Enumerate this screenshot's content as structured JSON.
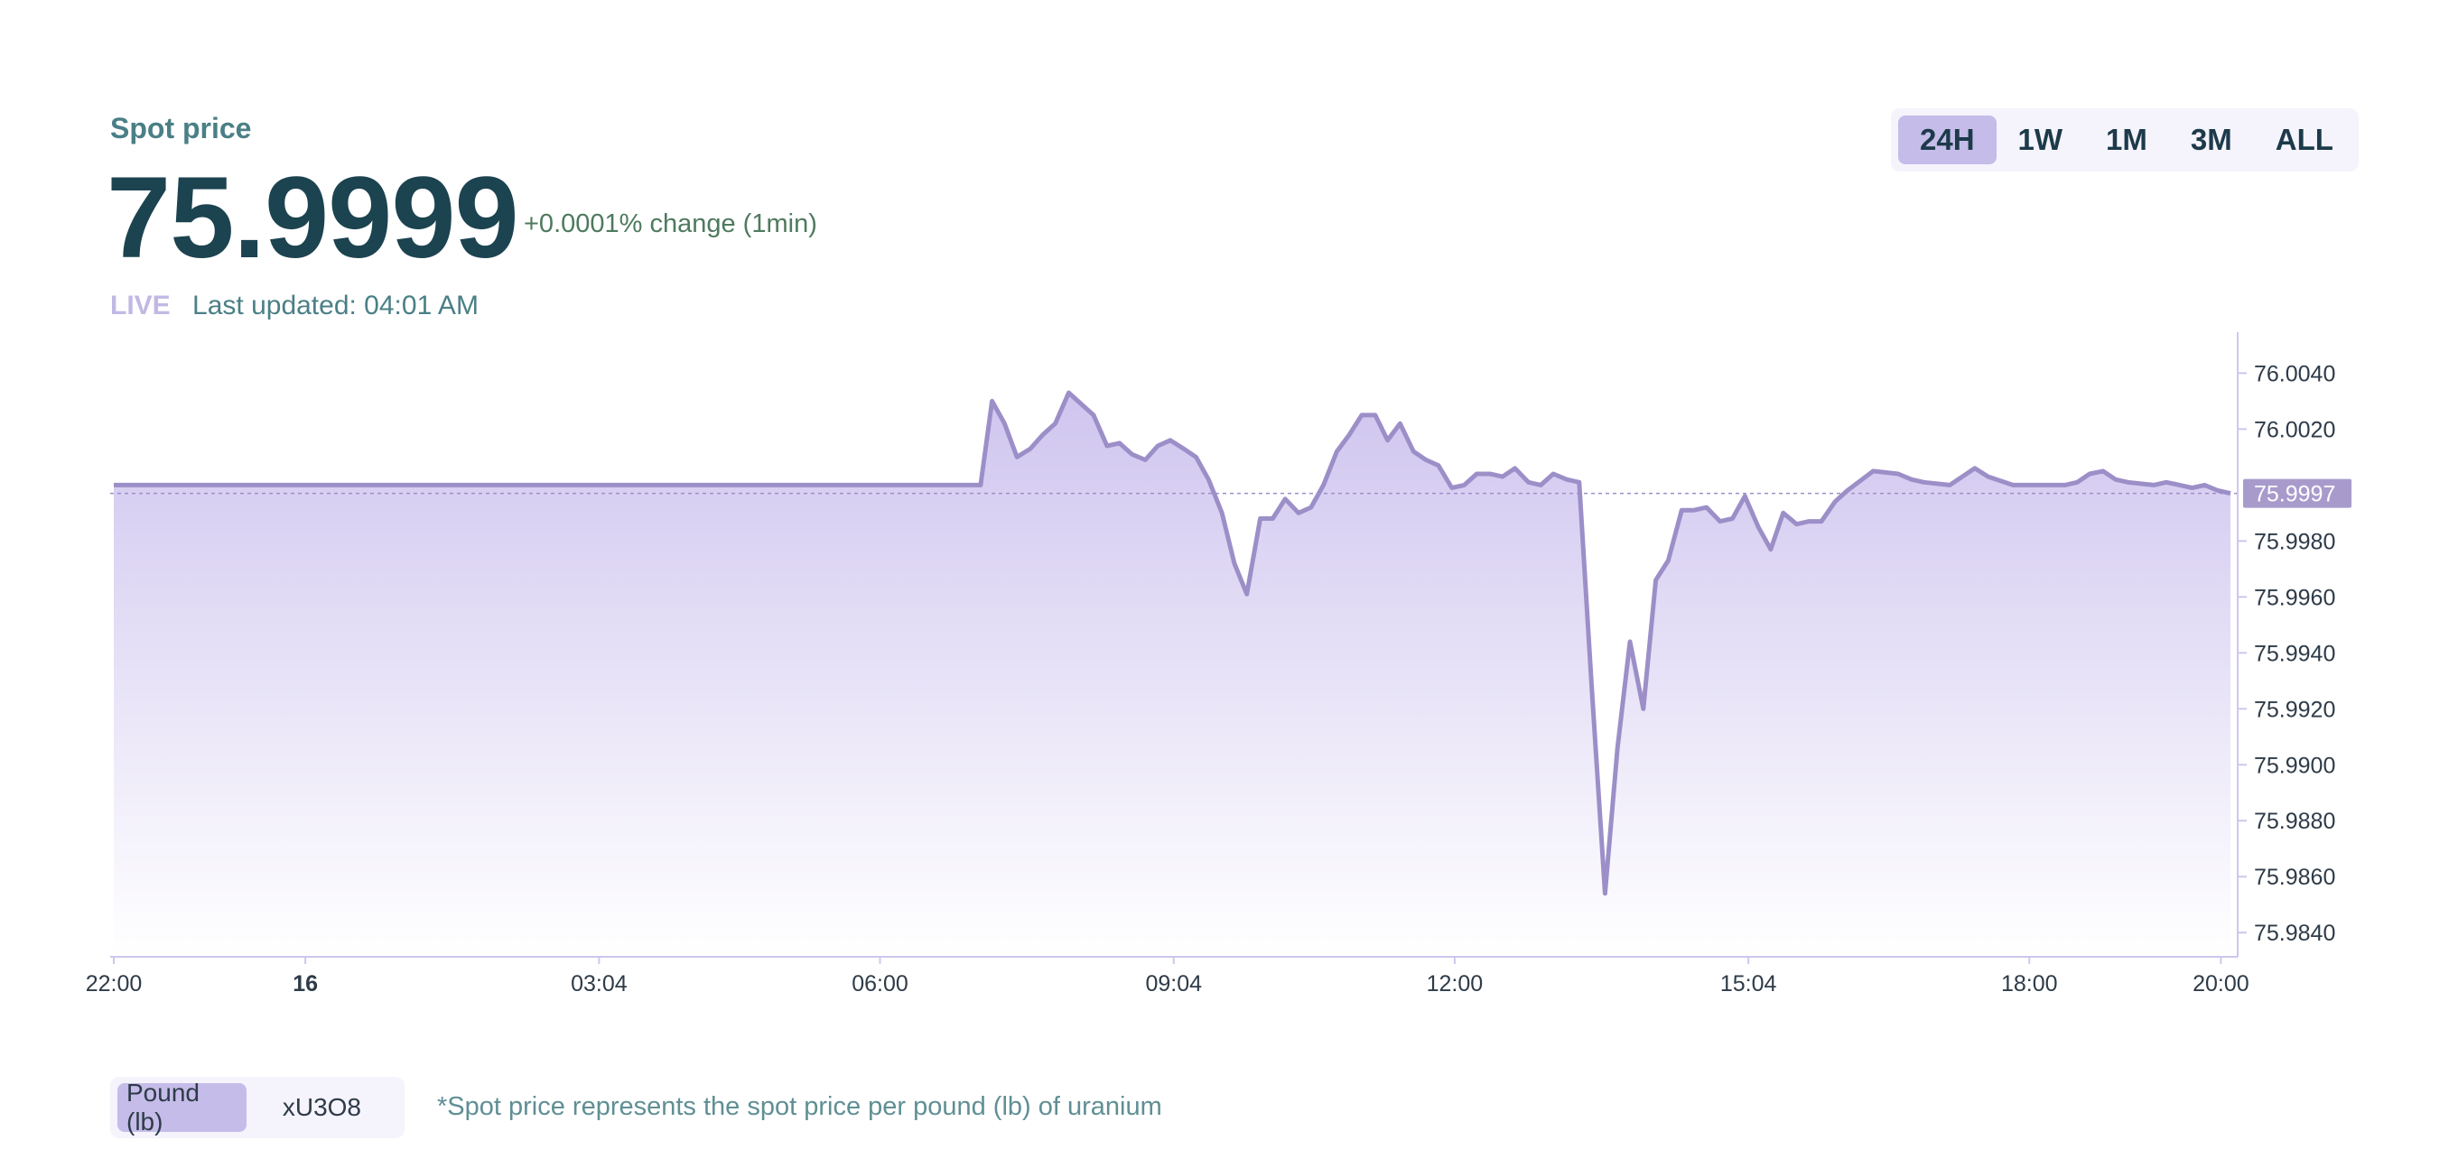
{
  "header": {
    "label": "Spot price",
    "price": "75.9999",
    "change": "+0.0001% change (1min)",
    "live": "LIVE",
    "updated": "Last updated: 04:01 AM"
  },
  "range_tabs": [
    "24H",
    "1W",
    "1M",
    "3M",
    "ALL"
  ],
  "range_selected": "24H",
  "units": {
    "options": [
      "Pound (lb)",
      "xU3O8"
    ],
    "selected": "Pound (lb)"
  },
  "footnote": "*Spot price represents the spot price per pound (lb) of uranium",
  "colors": {
    "line": "#9c8fc8",
    "fill_top": "#cfc5ef",
    "fill_bottom": "#ffffff",
    "accent": "#c5bce9",
    "current_badge": "#a89bcc",
    "axis": "#cfc6ec",
    "tick_text": "#2e3b48"
  },
  "chart_data": {
    "type": "area",
    "title": "",
    "xlabel": "",
    "ylabel": "",
    "x_ticks": [
      "22:00",
      "16",
      "03:04",
      "06:00",
      "09:04",
      "12:00",
      "15:04",
      "18:00",
      "20:00"
    ],
    "x_ticks_bold": [
      "16"
    ],
    "y_ticks": [
      "76.0040",
      "76.0020",
      "75.9980",
      "75.9960",
      "75.9940",
      "75.9920",
      "75.9900",
      "75.9880",
      "75.9860",
      "75.9840"
    ],
    "ylim": [
      75.9832,
      76.0054
    ],
    "current_value": "75.9997",
    "x_domain_hours": [
      -2.0,
      20.1
    ],
    "series": [
      {
        "x": [
          -2.0,
          7.05,
          7.17,
          7.3,
          7.43,
          7.57,
          7.7,
          7.83,
          7.97,
          8.1,
          8.23,
          8.37,
          8.5,
          8.63,
          8.77,
          8.9,
          9.03,
          9.17,
          9.3,
          9.43,
          9.57,
          9.7,
          9.83,
          9.97,
          10.1,
          10.23,
          10.37,
          10.5,
          10.63,
          10.77,
          10.9,
          11.03,
          11.17,
          11.3,
          11.43,
          11.57,
          11.7,
          11.83,
          11.97,
          12.1,
          12.23,
          12.37,
          12.5,
          12.63,
          12.77,
          12.9,
          13.03,
          13.17,
          13.3,
          13.43,
          13.57,
          13.7,
          13.83,
          13.97,
          14.1,
          14.23,
          14.37,
          14.5,
          14.63,
          14.77,
          14.9,
          15.03,
          15.17,
          15.3,
          15.43,
          15.57,
          15.7,
          15.83,
          15.97,
          16.1,
          16.37,
          16.63,
          16.77,
          16.9,
          17.17,
          17.43,
          17.57,
          17.83,
          17.97,
          18.1,
          18.37,
          18.5,
          18.63,
          18.77,
          18.9,
          19.03,
          19.3,
          19.43,
          19.57,
          19.7,
          19.83,
          19.97,
          20.1
        ],
        "y": [
          76.0,
          76.0,
          76.003,
          76.0022,
          76.001,
          76.0013,
          76.0018,
          76.0022,
          76.0033,
          76.0029,
          76.0025,
          76.0014,
          76.0015,
          76.0011,
          76.0009,
          76.0014,
          76.0016,
          76.0013,
          76.001,
          76.0002,
          75.999,
          75.9972,
          75.9961,
          75.9988,
          75.9988,
          75.9995,
          75.999,
          75.9992,
          76.0,
          76.0012,
          76.0018,
          76.0025,
          76.0025,
          76.0016,
          76.0022,
          76.0012,
          76.0009,
          76.0007,
          75.9999,
          76.0,
          76.0004,
          76.0004,
          76.0003,
          76.0006,
          76.0001,
          76.0,
          76.0004,
          76.0002,
          76.0001,
          75.9928,
          75.9854,
          75.9906,
          75.9944,
          75.992,
          75.9966,
          75.9973,
          75.9991,
          75.9991,
          75.9992,
          75.9987,
          75.9988,
          75.9996,
          75.9985,
          75.9977,
          75.999,
          75.9986,
          75.9987,
          75.9987,
          75.9994,
          75.9998,
          76.0005,
          76.0004,
          76.0002,
          76.0001,
          76.0,
          76.0006,
          76.0003,
          76.0,
          76.0,
          76.0,
          76.0,
          76.0001,
          76.0004,
          76.0005,
          76.0002,
          76.0001,
          76.0,
          76.0001,
          76.0,
          75.9999,
          76.0,
          75.9998,
          75.9997
        ]
      }
    ],
    "grid": false,
    "legend": "none"
  }
}
